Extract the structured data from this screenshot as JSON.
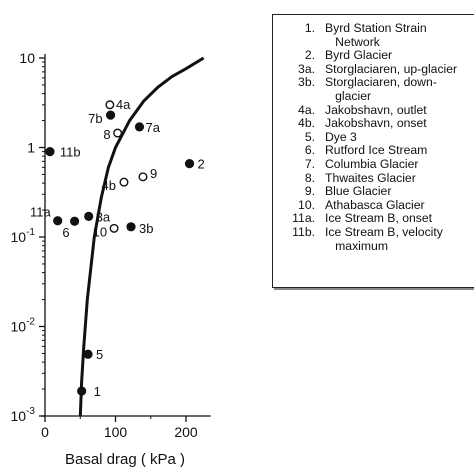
{
  "chart_data": {
    "type": "scatter",
    "xlabel": "Basal drag ( kPa )",
    "ylabel": "",
    "xlim": [
      -5,
      235
    ],
    "ylim": [
      0.001,
      10
    ],
    "y_scale": "log",
    "x_ticks": [
      "0",
      "100",
      "200"
    ],
    "y_ticks": [
      "10",
      "1",
      "10^-1",
      "10^-2",
      "10^-3"
    ],
    "points": [
      {
        "label": "1",
        "x": 52,
        "y": 0.0019,
        "marker": "filled"
      },
      {
        "label": "2",
        "x": 205,
        "y": 0.66,
        "marker": "filled"
      },
      {
        "label": "3a",
        "x": 62,
        "y": 0.17,
        "marker": "filled"
      },
      {
        "label": "3b",
        "x": 122,
        "y": 0.13,
        "marker": "filled"
      },
      {
        "label": "4a",
        "x": 92,
        "y": 3.0,
        "marker": "open"
      },
      {
        "label": "4b",
        "x": 112,
        "y": 0.41,
        "marker": "open"
      },
      {
        "label": "5",
        "x": 61,
        "y": 0.0049,
        "marker": "filled"
      },
      {
        "label": "6",
        "x": 42,
        "y": 0.15,
        "marker": "filled"
      },
      {
        "label": "7a",
        "x": 134,
        "y": 1.7,
        "marker": "filled"
      },
      {
        "label": "7b",
        "x": 93,
        "y": 2.3,
        "marker": "filled"
      },
      {
        "label": "8",
        "x": 103,
        "y": 1.45,
        "marker": "open"
      },
      {
        "label": "9",
        "x": 139,
        "y": 0.47,
        "marker": "open"
      },
      {
        "label": "10",
        "x": 98,
        "y": 0.125,
        "marker": "open"
      },
      {
        "label": "11a",
        "x": 18,
        "y": 0.152,
        "marker": "filled"
      },
      {
        "label": "11b",
        "x": 7,
        "y": 0.9,
        "marker": "filled"
      }
    ],
    "curve": {
      "x": [
        50,
        52,
        55,
        60,
        70,
        80,
        90,
        100,
        120,
        140,
        160,
        180,
        200,
        225
      ],
      "y": [
        0.001,
        0.0025,
        0.006,
        0.02,
        0.1,
        0.28,
        0.6,
        1.0,
        2.0,
        3.3,
        4.7,
        6.2,
        7.6,
        10
      ]
    },
    "legend": [
      {
        "num": "1.",
        "text": "Byrd Station Strain\n   Network"
      },
      {
        "num": "2.",
        "text": "Byrd Glacier"
      },
      {
        "num": "3a.",
        "text": "Storglaciaren, up-glacier"
      },
      {
        "num": "3b.",
        "text": "Storglaciaren, down-\n   glacier"
      },
      {
        "num": "4a.",
        "text": "Jakobshavn, outlet"
      },
      {
        "num": "4b.",
        "text": "Jakobshavn, onset"
      },
      {
        "num": "5.",
        "text": "Dye 3"
      },
      {
        "num": "6.",
        "text": "Rutford Ice Stream"
      },
      {
        "num": "7.",
        "text": "Columbia Glacier"
      },
      {
        "num": "8.",
        "text": "Thwaites Glacier"
      },
      {
        "num": "9.",
        "text": "Blue Glacier"
      },
      {
        "num": "10.",
        "text": "Athabasca Glacier"
      },
      {
        "num": "11a.",
        "text": "Ice Stream B, onset"
      },
      {
        "num": "11b.",
        "text": "Ice Stream B, velocity\n   maximum"
      }
    ],
    "colors": {
      "ink": "#111111",
      "background": "#ffffff"
    }
  }
}
